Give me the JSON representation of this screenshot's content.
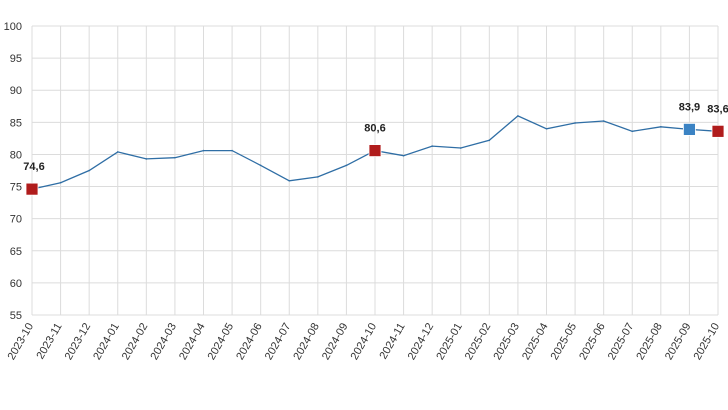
{
  "chart_data": {
    "type": "line",
    "title": "",
    "xlabel": "",
    "ylabel": "",
    "ylim": [
      55,
      100
    ],
    "yticks": [
      "55",
      "60",
      "65",
      "70",
      "75",
      "80",
      "85",
      "90",
      "95",
      "100"
    ],
    "grid": true,
    "categories": [
      "2023-10",
      "2023-11",
      "2023-12",
      "2024-01",
      "2024-02",
      "2024-03",
      "2024-04",
      "2024-05",
      "2024-06",
      "2024-07",
      "2024-08",
      "2024-09",
      "2024-10",
      "2024-11",
      "2024-12",
      "2025-01",
      "2025-02",
      "2025-03",
      "2025-04",
      "2025-05",
      "2025-06",
      "2025-07",
      "2025-08",
      "2025-09",
      "2025-10"
    ],
    "series": [
      {
        "values": [
          74.6,
          75.6,
          77.5,
          80.4,
          79.3,
          79.5,
          80.6,
          80.6,
          78.3,
          75.9,
          76.5,
          78.3,
          80.6,
          79.8,
          81.3,
          81.0,
          82.2,
          86.0,
          84.0,
          84.9,
          85.2,
          83.6,
          84.3,
          83.9,
          83.6
        ],
        "color": "#2f6ea5"
      }
    ],
    "highlights": [
      {
        "index": 0,
        "label": "74,6",
        "color": "#b01c1c"
      },
      {
        "index": 12,
        "label": "80,6",
        "color": "#b01c1c"
      },
      {
        "index": 23,
        "label": "83,9",
        "color": "#3b83c4"
      },
      {
        "index": 24,
        "label": "83,6",
        "color": "#b01c1c"
      }
    ]
  }
}
